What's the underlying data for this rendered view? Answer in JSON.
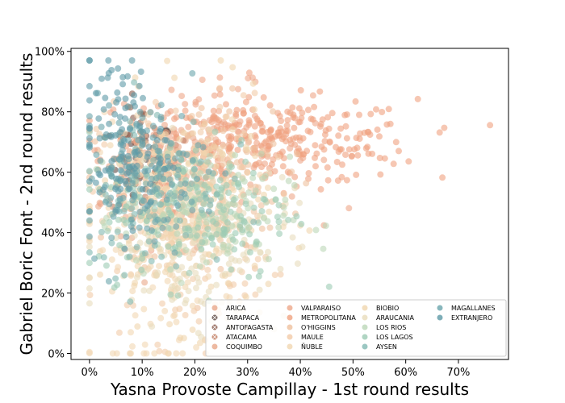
{
  "chart_data": {
    "type": "scatter",
    "title": "",
    "xlabel": "Yasna Provoste Campillay - 1st round results",
    "ylabel": "Gabriel Boric Font - 2nd round results",
    "xlim": [
      -3.5,
      79.5
    ],
    "ylim": [
      -2,
      101
    ],
    "x_ticks": [
      0,
      10,
      20,
      30,
      40,
      50,
      60,
      70
    ],
    "x_tick_labels": [
      "0%",
      "10%",
      "20%",
      "30%",
      "40%",
      "50%",
      "60%",
      "70%"
    ],
    "y_ticks": [
      0,
      20,
      40,
      60,
      80,
      100
    ],
    "y_tick_labels": [
      "0%",
      "20%",
      "40%",
      "60%",
      "80%",
      "100%"
    ],
    "grid": false,
    "legend_position": "lower-right",
    "legend_columns": 4,
    "series": [
      {
        "name": "ARICA",
        "color": "#e9a88a",
        "marker": "o",
        "center": [
          12,
          55
        ],
        "spread": [
          5,
          12
        ],
        "count": 40
      },
      {
        "name": "TARAPACA",
        "color": "#5e4a44",
        "marker": "x",
        "center": [
          10,
          62
        ],
        "spread": [
          3,
          8
        ],
        "count": 25
      },
      {
        "name": "ANTOFAGASTA",
        "color": "#8a5a4a",
        "marker": "x",
        "center": [
          10,
          66
        ],
        "spread": [
          3,
          8
        ],
        "count": 30
      },
      {
        "name": "ATACAMA",
        "color": "#c07a5e",
        "marker": "x",
        "center": [
          12,
          62
        ],
        "spread": [
          4,
          9
        ],
        "count": 30
      },
      {
        "name": "COQUIMBO",
        "color": "#e9a88a",
        "marker": "o",
        "center": [
          15,
          60
        ],
        "spread": [
          6,
          12
        ],
        "count": 60
      },
      {
        "name": "VALPARAISO",
        "color": "#eea789",
        "marker": "o",
        "center": [
          22,
          68
        ],
        "spread": [
          10,
          10
        ],
        "count": 180
      },
      {
        "name": "METROPOLITANA",
        "color": "#f0a280",
        "marker": "o",
        "center": [
          36,
          70
        ],
        "spread": [
          13,
          7
        ],
        "count": 260
      },
      {
        "name": "O'HIGGINS",
        "color": "#efc19e",
        "marker": "o",
        "center": [
          22,
          55
        ],
        "spread": [
          8,
          14
        ],
        "count": 140
      },
      {
        "name": "MAULE",
        "color": "#f2cba8",
        "marker": "o",
        "center": [
          18,
          45
        ],
        "spread": [
          8,
          20
        ],
        "count": 200
      },
      {
        "name": "ÑUBLE",
        "color": "#f1d7b2",
        "marker": "o",
        "center": [
          14,
          35
        ],
        "spread": [
          7,
          20
        ],
        "count": 160
      },
      {
        "name": "BIOBIO",
        "color": "#f0d6ae",
        "marker": "o",
        "center": [
          18,
          48
        ],
        "spread": [
          8,
          18
        ],
        "count": 200
      },
      {
        "name": "ARAUCANIA",
        "color": "#e8dcbc",
        "marker": "o",
        "center": [
          20,
          38
        ],
        "spread": [
          9,
          14
        ],
        "count": 160
      },
      {
        "name": "LOS RIOS",
        "color": "#bcd7b8",
        "marker": "o",
        "center": [
          22,
          45
        ],
        "spread": [
          8,
          10
        ],
        "count": 140
      },
      {
        "name": "LOS LAGOS",
        "color": "#9ccbb4",
        "marker": "o",
        "center": [
          20,
          48
        ],
        "spread": [
          9,
          12
        ],
        "count": 180
      },
      {
        "name": "AYSEN",
        "color": "#82b9b3",
        "marker": "o",
        "center": [
          12,
          55
        ],
        "spread": [
          7,
          14
        ],
        "count": 90
      },
      {
        "name": "MAGALLANES",
        "color": "#6aa5ac",
        "marker": "o",
        "center": [
          10,
          60
        ],
        "spread": [
          6,
          12
        ],
        "count": 130
      },
      {
        "name": "EXTRANJERO",
        "color": "#5e9aa6",
        "marker": "o",
        "center": [
          6,
          70
        ],
        "spread": [
          4,
          14
        ],
        "count": 110
      }
    ]
  }
}
